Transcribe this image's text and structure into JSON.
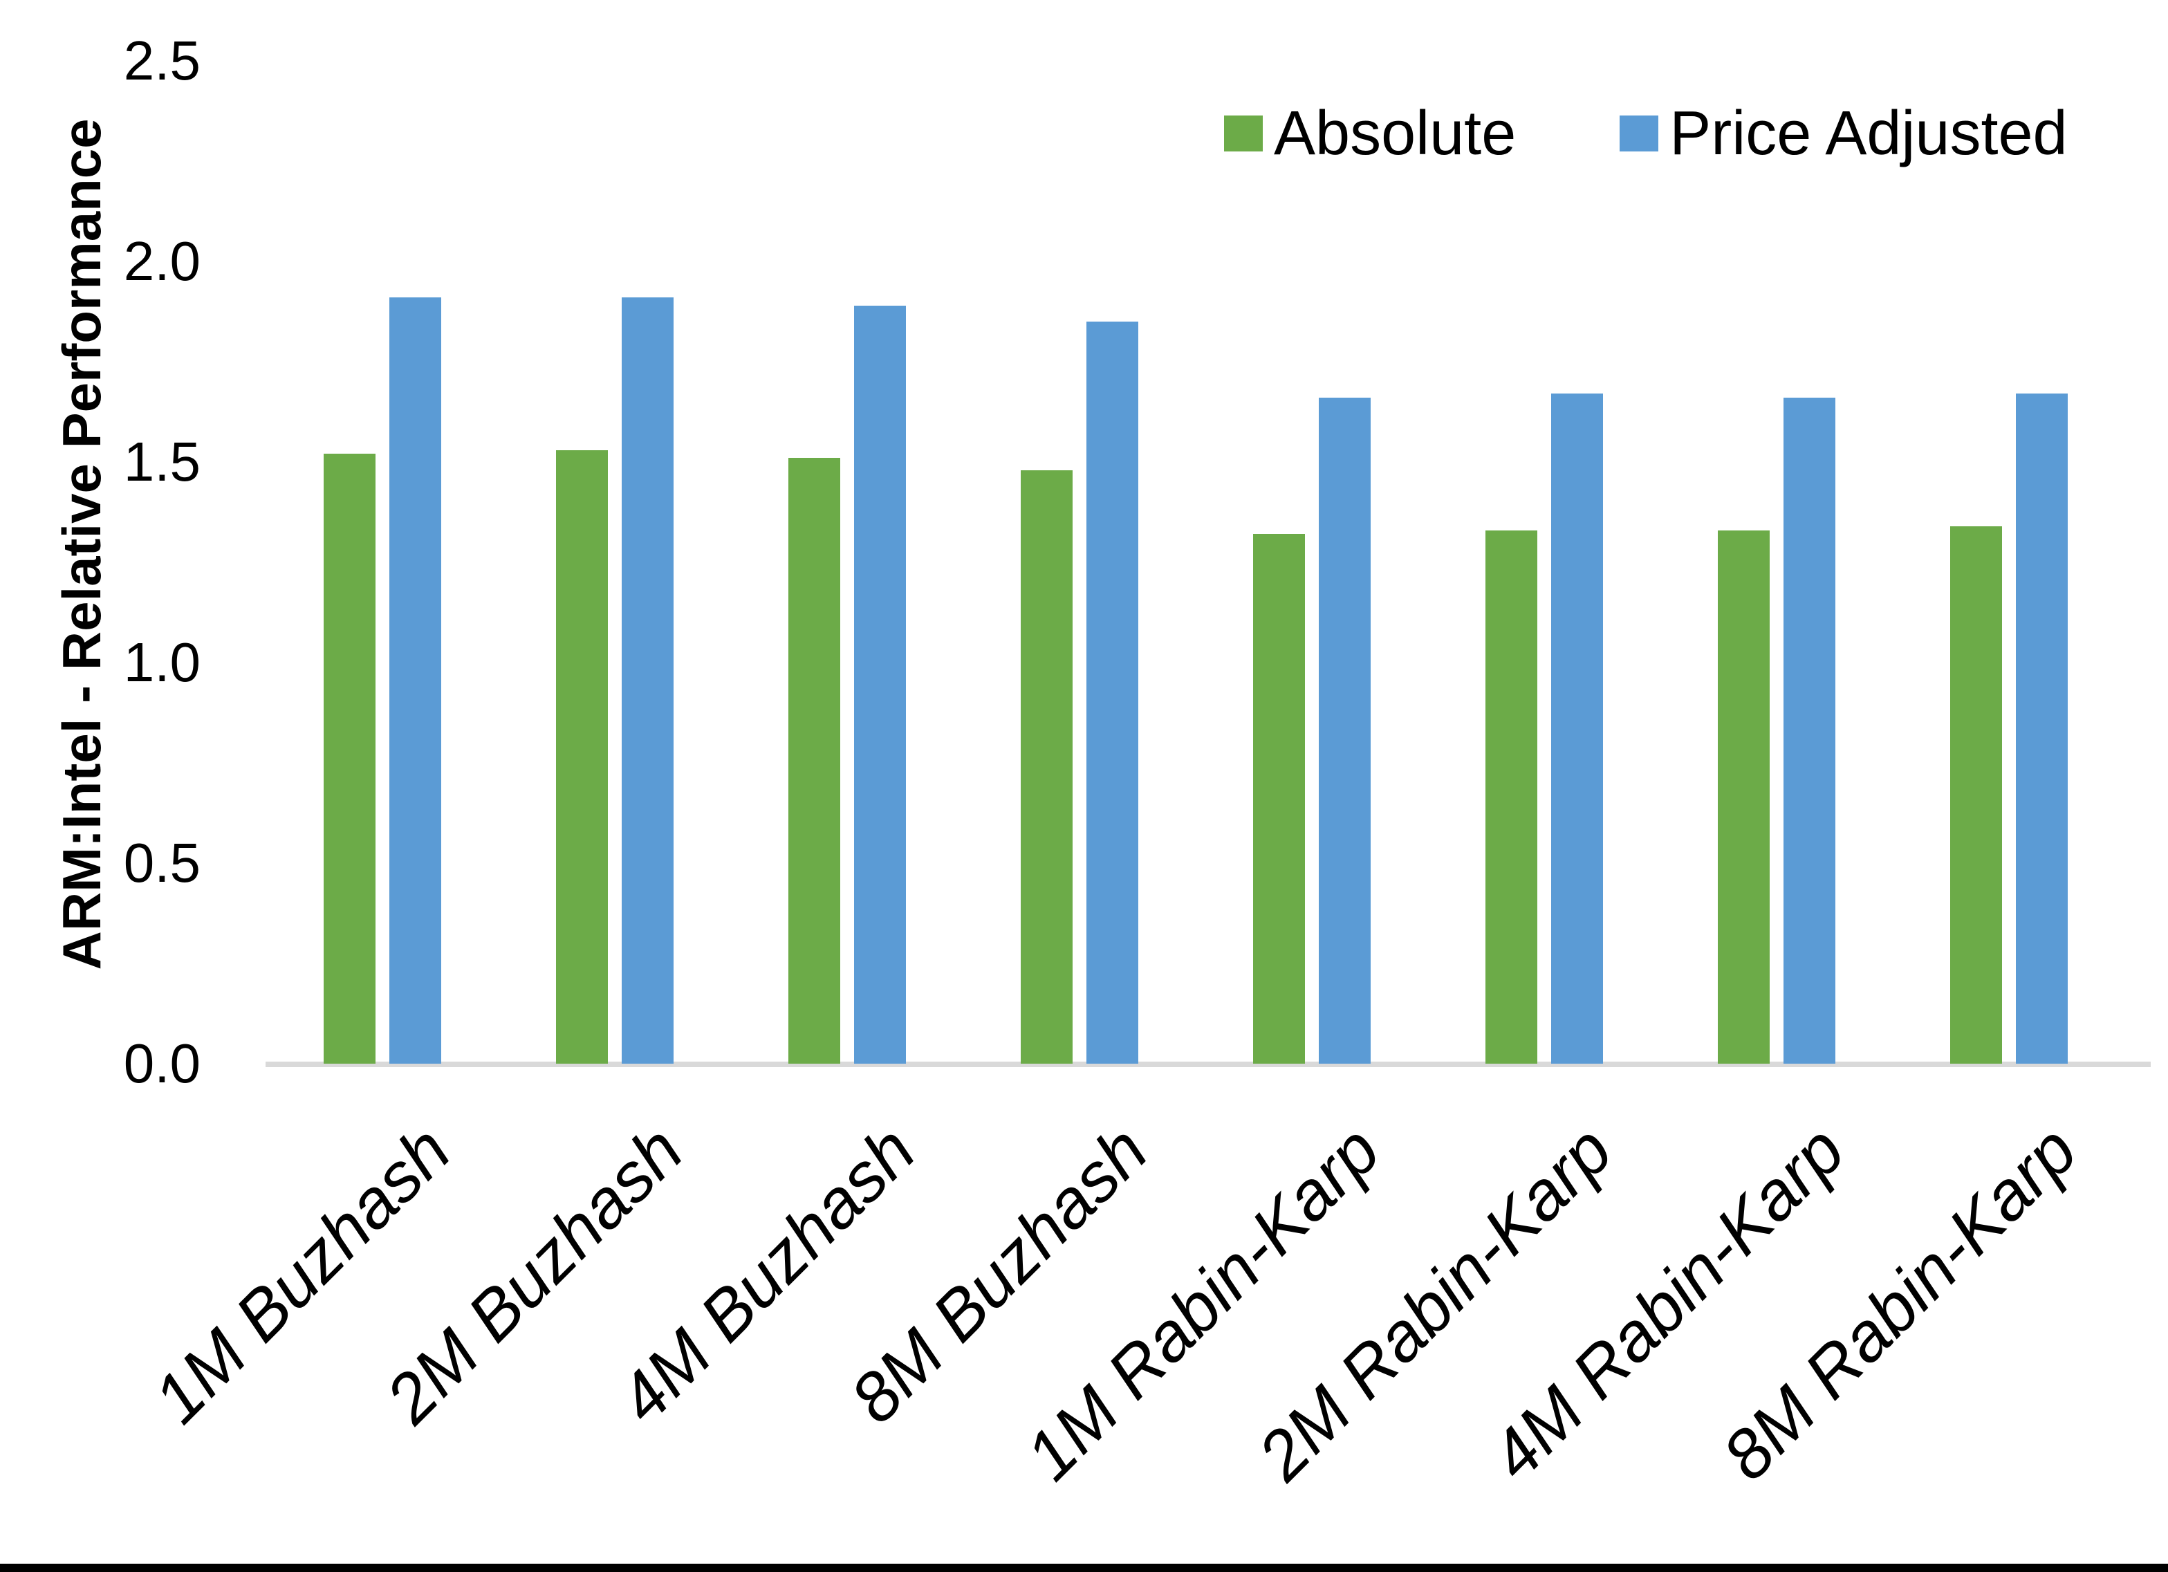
{
  "chart_data": {
    "type": "bar",
    "title": "",
    "xlabel": "",
    "ylabel": "ARM:Intel - Relative Performance",
    "ylim": [
      0,
      2.5
    ],
    "yticks": [
      "0.0",
      "0.5",
      "1.0",
      "1.5",
      "2.0",
      "2.5"
    ],
    "grid": false,
    "legend_position": "top-right",
    "categories": [
      "1M Buzhash",
      "2M Buzhash",
      "4M Buzhash",
      "8M Buzhash",
      "1M Rabin-Karp",
      "2M Rabin-Karp",
      "4M Rabin-Karp",
      "8M Rabin-Karp"
    ],
    "series": [
      {
        "name": "Absolute",
        "color": "#6CAB48",
        "values": [
          1.52,
          1.53,
          1.51,
          1.48,
          1.32,
          1.33,
          1.33,
          1.34
        ]
      },
      {
        "name": "Price Adjusted",
        "color": "#5B9BD5",
        "values": [
          1.91,
          1.91,
          1.89,
          1.85,
          1.66,
          1.67,
          1.66,
          1.67
        ]
      }
    ]
  },
  "colors": {
    "background": "#FFFFFF",
    "axis_line": "#D9D9D9",
    "text": "#000000",
    "frame_bottom": "#000000"
  }
}
